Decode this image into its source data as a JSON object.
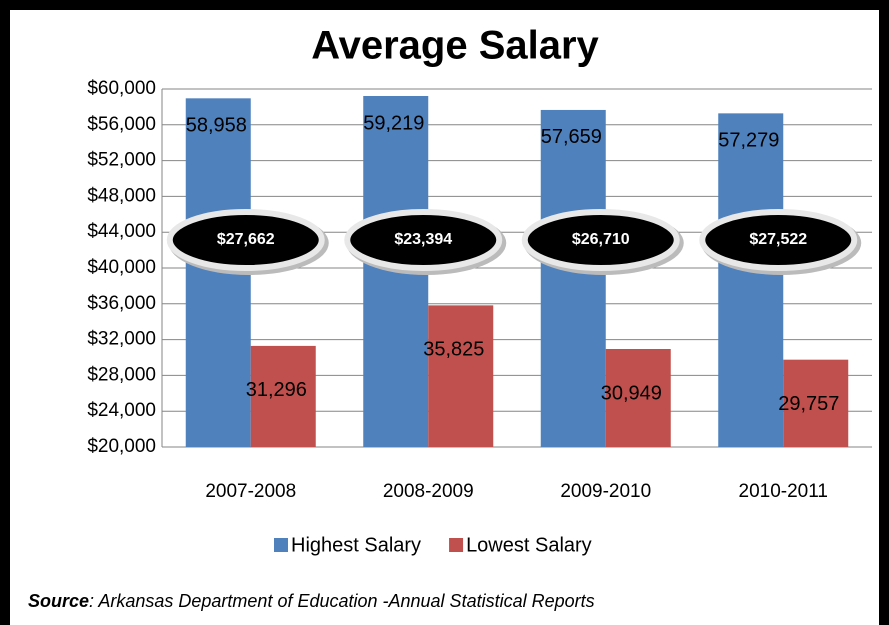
{
  "chart_data": {
    "type": "bar",
    "title": "Average Salary",
    "categories": [
      "2007-2008",
      "2008-2009",
      "2009-2010",
      "2010-2011"
    ],
    "series": [
      {
        "name": "Highest Salary",
        "color": "#4f81bd",
        "values": [
          58958,
          59219,
          57659,
          57279
        ],
        "value_labels": [
          "58,958",
          "59,219",
          "57,659",
          "57,279"
        ]
      },
      {
        "name": "Lowest Salary",
        "color": "#c0504d",
        "values": [
          31296,
          35825,
          30949,
          29757
        ],
        "value_labels": [
          "31,296",
          "35,825",
          "30,949",
          "29,757"
        ]
      }
    ],
    "ylim": [
      20000,
      60000
    ],
    "yticks": [
      {
        "value": 20000,
        "label": "$20,000"
      },
      {
        "value": 24000,
        "label": "$24,000"
      },
      {
        "value": 28000,
        "label": "$28,000"
      },
      {
        "value": 32000,
        "label": "$32,000"
      },
      {
        "value": 36000,
        "label": "$36,000"
      },
      {
        "value": 40000,
        "label": "$40,000"
      },
      {
        "value": 44000,
        "label": "$44,000"
      },
      {
        "value": 48000,
        "label": "$48,000"
      },
      {
        "value": 52000,
        "label": "$52,000"
      },
      {
        "value": 56000,
        "label": "$56,000"
      },
      {
        "value": 60000,
        "label": "$60,000"
      }
    ],
    "grid": true,
    "legend": "bottom",
    "annotations": [
      "$27,662",
      "$23,394",
      "$26,710",
      "$27,522"
    ],
    "source_label": "Source",
    "source_text": ": Arkansas Department of Education -Annual Statistical Reports"
  }
}
